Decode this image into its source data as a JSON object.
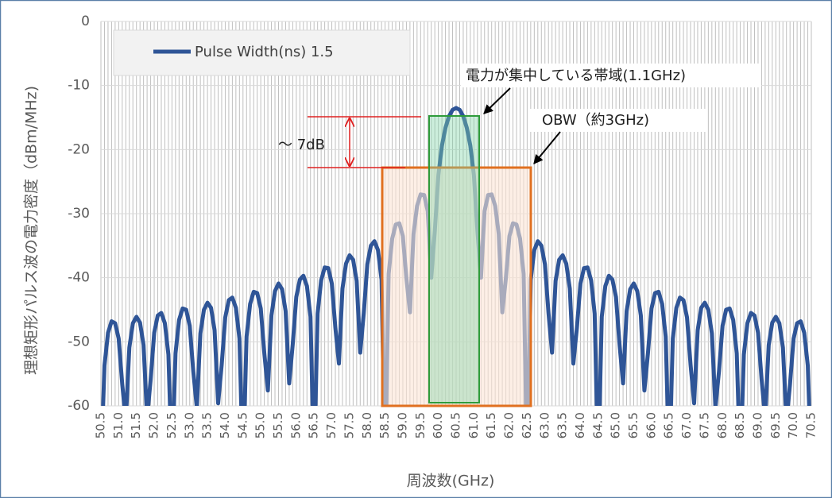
{
  "chart_data": {
    "type": "line",
    "x_label": "周波数(GHz)",
    "y_label": "理想矩形パルス波の電力密度（dBm/MHz)",
    "annotations": [
      "～ 7dB",
      "電力が集中している帯域(1.1GHz)",
      "OBW（約3GHz)"
    ],
    "legend": "top-left",
    "grid": true,
    "xlim": [
      50.5,
      70.5
    ],
    "ylim": [
      -60,
      0
    ],
    "yticks": [
      0,
      -10,
      -20,
      -30,
      -40,
      -50,
      -60
    ],
    "xticks": [
      50.5,
      {
        "value": 51,
        "label": "51.0"
      },
      51.5,
      {
        "value": 52,
        "label": "52.0"
      },
      52.5,
      {
        "value": 53,
        "label": "53.0"
      },
      53.5,
      {
        "value": 54,
        "label": "54.0"
      },
      54.5,
      {
        "value": 55,
        "label": "55.0"
      },
      55.5,
      {
        "value": 56,
        "label": "56.0"
      },
      56.5,
      {
        "value": 57,
        "label": "57.0"
      },
      57.5,
      {
        "value": 58,
        "label": "58.0"
      },
      58.5,
      {
        "value": 59,
        "label": "59.0"
      },
      59.5,
      {
        "value": 60,
        "label": "60.0"
      },
      60.5,
      {
        "value": 61,
        "label": "61.0"
      },
      61.5,
      {
        "value": 62,
        "label": "62.0"
      },
      62.5,
      {
        "value": 63,
        "label": "63.0"
      },
      63.5,
      {
        "value": 64,
        "label": "64.0"
      },
      64.5,
      {
        "value": 65,
        "label": "65.0"
      },
      65.5,
      {
        "value": 66,
        "label": "66.0"
      },
      66.5,
      {
        "value": 67,
        "label": "67.0"
      },
      67.5,
      {
        "value": 68,
        "label": "68.0"
      },
      68.5,
      {
        "value": 69,
        "label": "69.0"
      },
      69.5,
      {
        "value": 70,
        "label": "70.0"
      },
      70.5
    ],
    "x": [
      50.5,
      50.6,
      50.7,
      50.8,
      50.9,
      51.0,
      51.1,
      51.2,
      51.3,
      51.4,
      51.5,
      51.6,
      51.7,
      51.8,
      51.9,
      52.0,
      52.1,
      52.2,
      52.3,
      52.4,
      52.5,
      52.6,
      52.7,
      52.8,
      52.9,
      53.0,
      53.1,
      53.2,
      53.3,
      53.4,
      53.5,
      53.6,
      53.7,
      53.8,
      53.9,
      54.0,
      54.1,
      54.2,
      54.3,
      54.4,
      54.5,
      54.6,
      54.7,
      54.8,
      54.9,
      55.0,
      55.1,
      55.2,
      55.3,
      55.4,
      55.5,
      55.6,
      55.7,
      55.8,
      55.9,
      56.0,
      56.1,
      56.2,
      56.3,
      56.4,
      56.5,
      56.6,
      56.7,
      56.8,
      56.9,
      57.0,
      57.1,
      57.2,
      57.3,
      57.4,
      57.5,
      57.6,
      57.7,
      57.8,
      57.9,
      58.0,
      58.1,
      58.2,
      58.3,
      58.4,
      58.5,
      58.6,
      58.7,
      58.8,
      58.9,
      59.0,
      59.1,
      59.2,
      59.3,
      59.4,
      59.5,
      59.6,
      59.7,
      59.8,
      59.9,
      60.0,
      60.1,
      60.2,
      60.3,
      60.4,
      60.5,
      60.6,
      60.7,
      60.8,
      60.9,
      61.0,
      61.1,
      61.2,
      61.3,
      61.4,
      61.5,
      61.6,
      61.7,
      61.8,
      61.9,
      62.0,
      62.1,
      62.2,
      62.3,
      62.4,
      62.5,
      62.6,
      62.7,
      62.8,
      62.9,
      63.0,
      63.1,
      63.2,
      63.3,
      63.4,
      63.5,
      63.6,
      63.7,
      63.8,
      63.9,
      64.0,
      64.1,
      64.2,
      64.3,
      64.4,
      64.5,
      64.6,
      64.7,
      64.8,
      64.9,
      65.0,
      65.1,
      65.2,
      65.3,
      65.4,
      65.5,
      65.6,
      65.7,
      65.8,
      65.9,
      66.0,
      66.1,
      66.2,
      66.3,
      66.4,
      66.5,
      66.6,
      66.7,
      66.8,
      66.9,
      67.0,
      67.1,
      67.2,
      67.3,
      67.4,
      67.5,
      67.6,
      67.7,
      67.8,
      67.9,
      68.0,
      68.1,
      68.2,
      68.3,
      68.4,
      68.5,
      68.6,
      68.7,
      68.8,
      68.9,
      69.0,
      69.1,
      69.2,
      69.3,
      69.4,
      69.5,
      69.6,
      69.7,
      69.8,
      69.9,
      70.0,
      70.1,
      70.2,
      70.3,
      70.4,
      70.5
    ],
    "series": [
      {
        "name": "Pulse Width(ns) 1.5",
        "color": "#2f5597",
        "values": [
          -70,
          -53.7,
          -48.6,
          -46.8,
          -47.1,
          -49.5,
          -56.6,
          -62.4,
          -50.9,
          -47.1,
          -46.1,
          -47.0,
          -50.5,
          -61.9,
          -55.9,
          -48.6,
          -45.9,
          -45.5,
          -47.1,
          -52.0,
          -70,
          -51.8,
          -46.6,
          -44.8,
          -45.0,
          -47.5,
          -54.6,
          -60.3,
          -48.7,
          -45.0,
          -43.9,
          -44.7,
          -48.2,
          -59.6,
          -53.6,
          -46.2,
          -43.5,
          -43.1,
          -44.7,
          -49.5,
          -70,
          -49.2,
          -44.1,
          -42.2,
          -42.4,
          -44.8,
          -51.8,
          -57.6,
          -45.9,
          -42.1,
          -40.9,
          -41.8,
          -45.2,
          -56.5,
          -50.4,
          -43.0,
          -40.3,
          -39.7,
          -41.3,
          -46.1,
          -70,
          -45.6,
          -40.4,
          -38.4,
          -38.5,
          -40.9,
          -47.8,
          -53.4,
          -41.7,
          -37.8,
          -36.5,
          -37.2,
          -40.5,
          -51.7,
          -45.5,
          -37.9,
          -35.0,
          -34.3,
          -35.7,
          -40.3,
          -70,
          -39.4,
          -33.9,
          -31.7,
          -31.5,
          -33.5,
          -40.1,
          -45.4,
          -33.2,
          -28.8,
          -27.0,
          -27.1,
          -29.6,
          -40.0,
          -32.7,
          -24.0,
          -19.4,
          -16.6,
          -14.8,
          -13.8,
          -13.5,
          -13.8,
          -14.8,
          -16.6,
          -19.4,
          -24.0,
          -32.7,
          -40.0,
          -29.6,
          -27.1,
          -27.0,
          -28.8,
          -33.2,
          -45.4,
          -40.1,
          -33.5,
          -31.5,
          -31.7,
          -33.9,
          -39.4,
          -70,
          -40.3,
          -35.7,
          -34.3,
          -35.0,
          -37.9,
          -45.5,
          -51.7,
          -40.5,
          -37.2,
          -36.5,
          -37.8,
          -41.7,
          -53.4,
          -47.8,
          -40.9,
          -38.5,
          -38.4,
          -40.4,
          -45.6,
          -70,
          -46.1,
          -41.3,
          -39.7,
          -40.3,
          -43.0,
          -50.4,
          -56.5,
          -45.2,
          -41.8,
          -40.9,
          -42.1,
          -45.9,
          -57.6,
          -51.8,
          -44.8,
          -42.4,
          -42.2,
          -44.1,
          -49.2,
          -70,
          -49.5,
          -44.7,
          -43.1,
          -43.5,
          -46.2,
          -53.6,
          -59.6,
          -48.2,
          -44.7,
          -43.9,
          -45.0,
          -48.7,
          -60.3,
          -54.6,
          -47.5,
          -45.0,
          -44.8,
          -46.6,
          -51.8,
          -70,
          -52.0,
          -47.1,
          -45.5,
          -45.9,
          -48.6,
          -55.9,
          -61.9,
          -50.5,
          -47.0,
          -46.1,
          -47.1,
          -50.9,
          -62.4,
          -56.6,
          -49.5,
          -47.1,
          -46.8,
          -48.6,
          -53.7,
          -70
        ]
      }
    ]
  }
}
